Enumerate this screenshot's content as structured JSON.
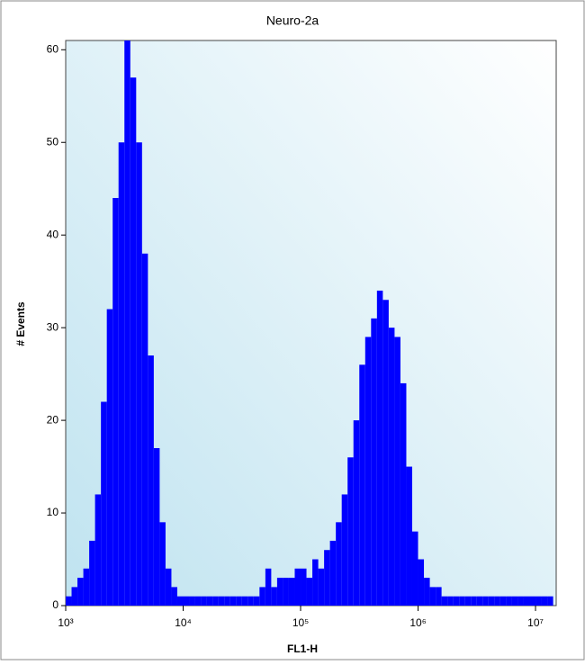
{
  "chart_data": {
    "type": "histogram",
    "title": "Neuro-2a",
    "xlabel": "FL1-H",
    "ylabel": "# Events",
    "xscale": "log",
    "color": "#0000ff",
    "bins": [
      1000,
      1122,
      1259,
      1413,
      1585,
      1778,
      1995,
      2239,
      2512,
      2818,
      3162,
      3548,
      3981,
      4467,
      5012,
      5623,
      6310,
      7079,
      7943,
      8913,
      10000,
      11220,
      12590,
      14130,
      15850,
      17780,
      19950,
      22390,
      25120,
      28180,
      31620,
      35480,
      39810,
      44670,
      50120,
      56230,
      63100,
      70790,
      79430,
      89130,
      100000,
      112200,
      125900,
      141300,
      158500,
      177800,
      199500,
      223900,
      251200,
      281800,
      316200,
      354800,
      398100,
      446700,
      501200,
      562300,
      631000,
      707900,
      794300,
      891300,
      1000000,
      1122000,
      1259000,
      1413000,
      1585000,
      1778000,
      1995000,
      2239000,
      2512000,
      2818000,
      3162000,
      3548000,
      3981000,
      4467000,
      5012000,
      5623000,
      6310000,
      7079000,
      7943000,
      8913000,
      10000000,
      11220000,
      12590000,
      14130000
    ],
    "values": [
      1,
      2,
      3,
      4,
      7,
      12,
      22,
      32,
      44,
      50,
      61,
      57,
      50,
      38,
      27,
      17,
      9,
      4,
      2,
      1,
      1,
      1,
      1,
      1,
      1,
      1,
      1,
      1,
      1,
      1,
      1,
      1,
      1,
      2,
      4,
      2,
      3,
      3,
      3,
      4,
      4,
      3,
      5,
      4,
      6,
      7,
      9,
      12,
      16,
      20,
      26,
      29,
      31,
      34,
      33,
      30,
      29,
      24,
      15,
      8,
      5,
      3,
      2,
      2,
      1,
      1,
      1,
      1,
      1,
      1,
      1,
      1,
      1,
      1,
      1,
      1,
      1,
      1,
      1,
      1,
      1,
      1,
      1
    ],
    "xlim": [
      1000,
      15000000
    ],
    "xticks": [
      {
        "value": 1000,
        "label": "10³"
      },
      {
        "value": 10000,
        "label": "10⁴"
      },
      {
        "value": 100000,
        "label": "10⁵"
      },
      {
        "value": 1000000,
        "label": "10⁶"
      },
      {
        "value": 10000000,
        "label": "10⁷"
      }
    ],
    "ylim": [
      0,
      61
    ],
    "yticks": [
      0,
      10,
      20,
      30,
      40,
      50,
      60
    ]
  }
}
